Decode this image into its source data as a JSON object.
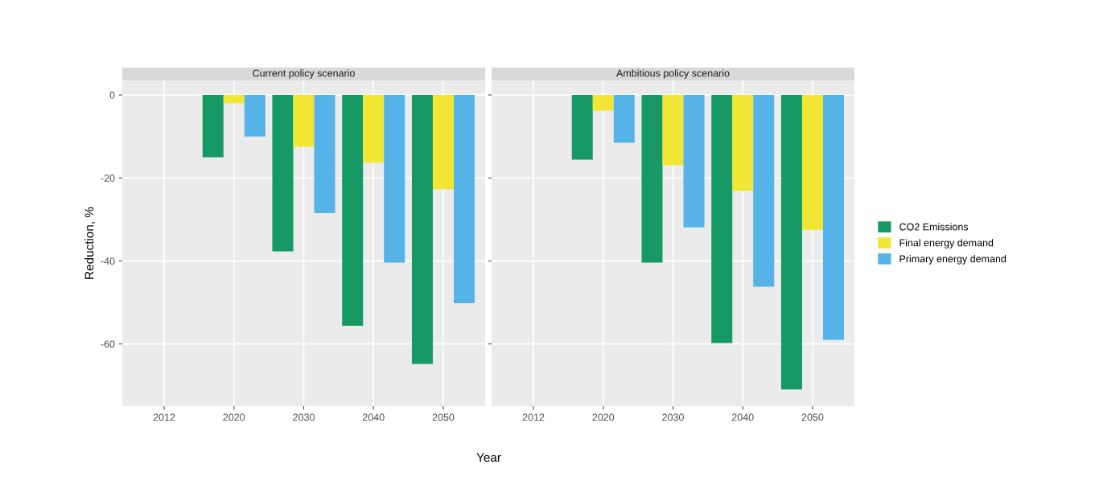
{
  "chart_data": [
    {
      "type": "bar",
      "title": "Current policy scenario",
      "ylabel": "Reduction, %",
      "xlabel": "Year",
      "categories": [
        "2012",
        "2020",
        "2030",
        "2040",
        "2050"
      ],
      "series": [
        {
          "name": "CO2 Emissions",
          "color": "#169964",
          "values": [
            null,
            -15,
            -37.7,
            -55.6,
            -64.8
          ]
        },
        {
          "name": "Final energy demand",
          "color": "#f2e634",
          "values": [
            null,
            -2,
            -12.5,
            -16.3,
            -22.7
          ]
        },
        {
          "name": "Primary energy demand",
          "color": "#56b3e8",
          "values": [
            null,
            -10,
            -28.5,
            -40.4,
            -50.2
          ]
        }
      ],
      "ylim": [
        -75,
        3.5
      ],
      "yticks": [
        0,
        -20,
        -40,
        -60
      ],
      "grid": true,
      "legend": "right"
    },
    {
      "type": "bar",
      "title": "Ambitious policy scenario",
      "categories": [
        "2012",
        "2020",
        "2030",
        "2040",
        "2050"
      ],
      "series": [
        {
          "color": "#169964",
          "values": [
            null,
            -15.6,
            -40.4,
            -59.8,
            -71
          ]
        },
        {
          "color": "#f2e634",
          "values": [
            null,
            -3.8,
            -16.9,
            -23.1,
            -32.5
          ]
        },
        {
          "color": "#56b3e8",
          "values": [
            null,
            -11.5,
            -31.9,
            -46.2,
            -59
          ]
        }
      ],
      "ylim": [
        -75,
        3.5
      ],
      "yticks": [
        0,
        -20,
        -40,
        -60
      ],
      "grid": true,
      "tick_labels": "x"
    }
  ]
}
